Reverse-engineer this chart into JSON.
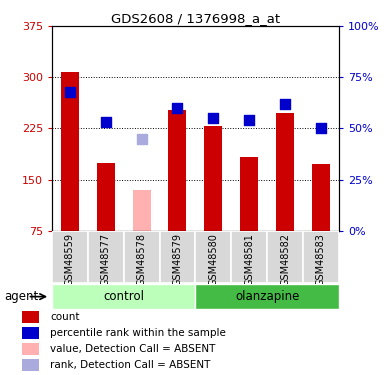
{
  "title": "GDS2608 / 1376998_a_at",
  "samples": [
    "GSM48559",
    "GSM48577",
    "GSM48578",
    "GSM48579",
    "GSM48580",
    "GSM48581",
    "GSM48582",
    "GSM48583"
  ],
  "red_bars": [
    308,
    175,
    null,
    252,
    228,
    183,
    248,
    173
  ],
  "pink_bars": [
    null,
    null,
    135,
    null,
    null,
    null,
    null,
    null
  ],
  "blue_pct": [
    68,
    53,
    null,
    60,
    55,
    54,
    62,
    50
  ],
  "lightblue_pct": [
    null,
    null,
    45,
    null,
    null,
    null,
    null,
    null
  ],
  "ylim_left": [
    75,
    375
  ],
  "ylim_right": [
    0,
    100
  ],
  "yticks_left": [
    75,
    150,
    225,
    300,
    375
  ],
  "yticks_right": [
    0,
    25,
    50,
    75,
    100
  ],
  "bar_width": 0.5,
  "square_size": 55,
  "red_color": "#cc0000",
  "pink_color": "#ffb0b0",
  "blue_color": "#0000cc",
  "lightblue_color": "#aaaadd",
  "control_color": "#bbffbb",
  "olanzapine_color": "#44bb44",
  "label_bg_color": "#d8d8d8",
  "grid_color": "#000000"
}
